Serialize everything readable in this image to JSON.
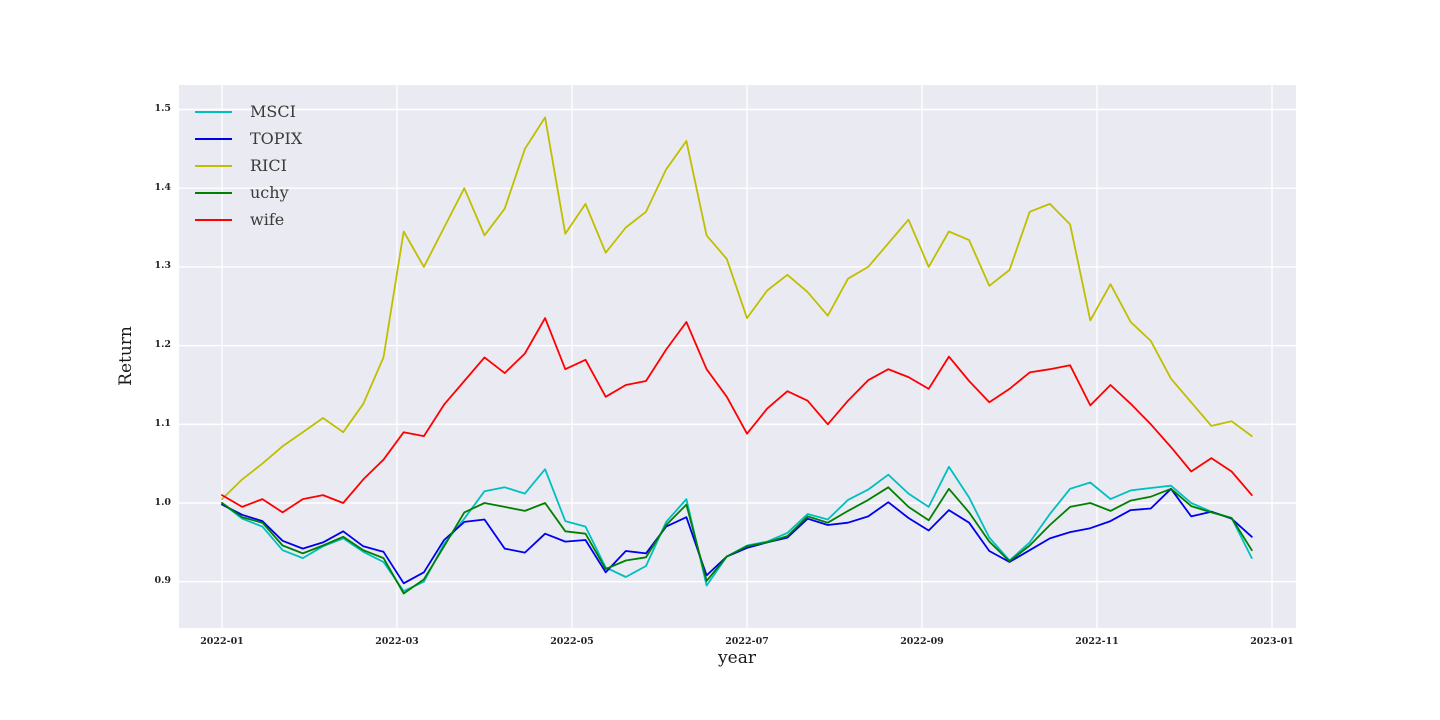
{
  "figure": {
    "background": "#ffffff",
    "plot_background": "#eaeaf2",
    "grid_color": "#ffffff"
  },
  "chart_data": {
    "type": "line",
    "title": "",
    "xlabel": "year",
    "ylabel": "Return",
    "grid": true,
    "legend_position": "upper-left",
    "x_tick_labels": [
      "2022-01",
      "2022-03",
      "2022-05",
      "2022-07",
      "2022-09",
      "2022-11",
      "2023-01"
    ],
    "x_tick_months": [
      0,
      2,
      4,
      6,
      8,
      10,
      12
    ],
    "y_tick_labels": [
      "0.9",
      "1.0",
      "1.1",
      "1.2",
      "1.3",
      "1.4",
      "1.5"
    ],
    "y_tick_values": [
      0.9,
      1.0,
      1.1,
      1.2,
      1.3,
      1.4,
      1.5
    ],
    "ylim": [
      0.842,
      1.531
    ],
    "xlim_months": [
      -0.49,
      12.27
    ],
    "x": [
      "2022-01-03",
      "2022-01-10",
      "2022-01-17",
      "2022-01-24",
      "2022-01-31",
      "2022-02-07",
      "2022-02-14",
      "2022-02-21",
      "2022-02-28",
      "2022-03-07",
      "2022-03-14",
      "2022-03-21",
      "2022-03-28",
      "2022-04-04",
      "2022-04-11",
      "2022-04-18",
      "2022-04-25",
      "2022-05-02",
      "2022-05-09",
      "2022-05-16",
      "2022-05-23",
      "2022-05-30",
      "2022-06-06",
      "2022-06-13",
      "2022-06-20",
      "2022-06-27",
      "2022-07-04",
      "2022-07-11",
      "2022-07-18",
      "2022-07-25",
      "2022-08-01",
      "2022-08-08",
      "2022-08-15",
      "2022-08-22",
      "2022-08-29",
      "2022-09-05",
      "2022-09-12",
      "2022-09-19",
      "2022-09-26",
      "2022-10-03",
      "2022-10-10",
      "2022-10-17",
      "2022-10-24",
      "2022-10-31",
      "2022-11-07",
      "2022-11-14",
      "2022-11-21",
      "2022-11-28",
      "2022-12-05",
      "2022-12-12",
      "2022-12-19",
      "2022-12-26"
    ],
    "series": [
      {
        "name": "MSCI",
        "color": "#00bfbf",
        "values": [
          1.0,
          0.98,
          0.97,
          0.94,
          0.93,
          0.945,
          0.955,
          0.938,
          0.925,
          0.888,
          0.9,
          0.948,
          0.98,
          1.015,
          1.02,
          1.012,
          1.043,
          0.977,
          0.97,
          0.918,
          0.906,
          0.92,
          0.976,
          1.005,
          0.895,
          0.932,
          0.946,
          0.951,
          0.962,
          0.986,
          0.979,
          1.004,
          1.017,
          1.036,
          1.012,
          0.995,
          1.046,
          1.007,
          0.956,
          0.927,
          0.95,
          0.986,
          1.018,
          1.026,
          1.005,
          1.016,
          1.019,
          1.022,
          1.0,
          0.989,
          0.981,
          0.93
        ]
      },
      {
        "name": "TOPIX",
        "color": "#0000ee",
        "values": [
          0.998,
          0.985,
          0.977,
          0.952,
          0.942,
          0.95,
          0.964,
          0.945,
          0.938,
          0.898,
          0.912,
          0.953,
          0.976,
          0.979,
          0.942,
          0.937,
          0.961,
          0.951,
          0.953,
          0.912,
          0.939,
          0.936,
          0.97,
          0.982,
          0.908,
          0.932,
          0.943,
          0.95,
          0.956,
          0.98,
          0.972,
          0.975,
          0.983,
          1.001,
          0.981,
          0.965,
          0.991,
          0.975,
          0.939,
          0.925,
          0.94,
          0.955,
          0.963,
          0.968,
          0.977,
          0.991,
          0.993,
          1.018,
          0.983,
          0.989,
          0.98,
          0.957
        ]
      },
      {
        "name": "RICI",
        "color": "#bfbf00",
        "values": [
          1.005,
          1.03,
          1.05,
          1.072,
          1.09,
          1.108,
          1.09,
          1.126,
          1.185,
          1.345,
          1.3,
          1.35,
          1.4,
          1.34,
          1.374,
          1.45,
          1.49,
          1.342,
          1.38,
          1.318,
          1.35,
          1.37,
          1.424,
          1.46,
          1.34,
          1.31,
          1.235,
          1.27,
          1.29,
          1.268,
          1.238,
          1.285,
          1.3,
          1.33,
          1.36,
          1.3,
          1.345,
          1.334,
          1.276,
          1.296,
          1.37,
          1.38,
          1.354,
          1.232,
          1.278,
          1.23,
          1.206,
          1.158,
          1.128,
          1.098,
          1.104,
          1.085
        ]
      },
      {
        "name": "uchy",
        "color": "#008000",
        "values": [
          1.0,
          0.982,
          0.975,
          0.946,
          0.936,
          0.946,
          0.957,
          0.94,
          0.93,
          0.885,
          0.903,
          0.945,
          0.988,
          1.0,
          0.995,
          0.99,
          1.0,
          0.964,
          0.961,
          0.916,
          0.927,
          0.931,
          0.972,
          0.998,
          0.901,
          0.932,
          0.945,
          0.95,
          0.958,
          0.983,
          0.975,
          0.99,
          1.004,
          1.02,
          0.995,
          0.978,
          1.018,
          0.988,
          0.951,
          0.926,
          0.946,
          0.972,
          0.995,
          1.0,
          0.99,
          1.003,
          1.008,
          1.018,
          0.996,
          0.988,
          0.981,
          0.94
        ]
      },
      {
        "name": "wife",
        "color": "#ff0000",
        "values": [
          1.01,
          0.995,
          1.005,
          0.988,
          1.005,
          1.01,
          1.0,
          1.03,
          1.055,
          1.09,
          1.085,
          1.125,
          1.155,
          1.185,
          1.165,
          1.19,
          1.235,
          1.17,
          1.182,
          1.135,
          1.15,
          1.155,
          1.195,
          1.23,
          1.17,
          1.135,
          1.088,
          1.12,
          1.142,
          1.13,
          1.1,
          1.13,
          1.156,
          1.17,
          1.16,
          1.145,
          1.186,
          1.155,
          1.128,
          1.145,
          1.166,
          1.17,
          1.175,
          1.124,
          1.15,
          1.126,
          1.1,
          1.071,
          1.04,
          1.057,
          1.04,
          1.01
        ]
      }
    ]
  }
}
